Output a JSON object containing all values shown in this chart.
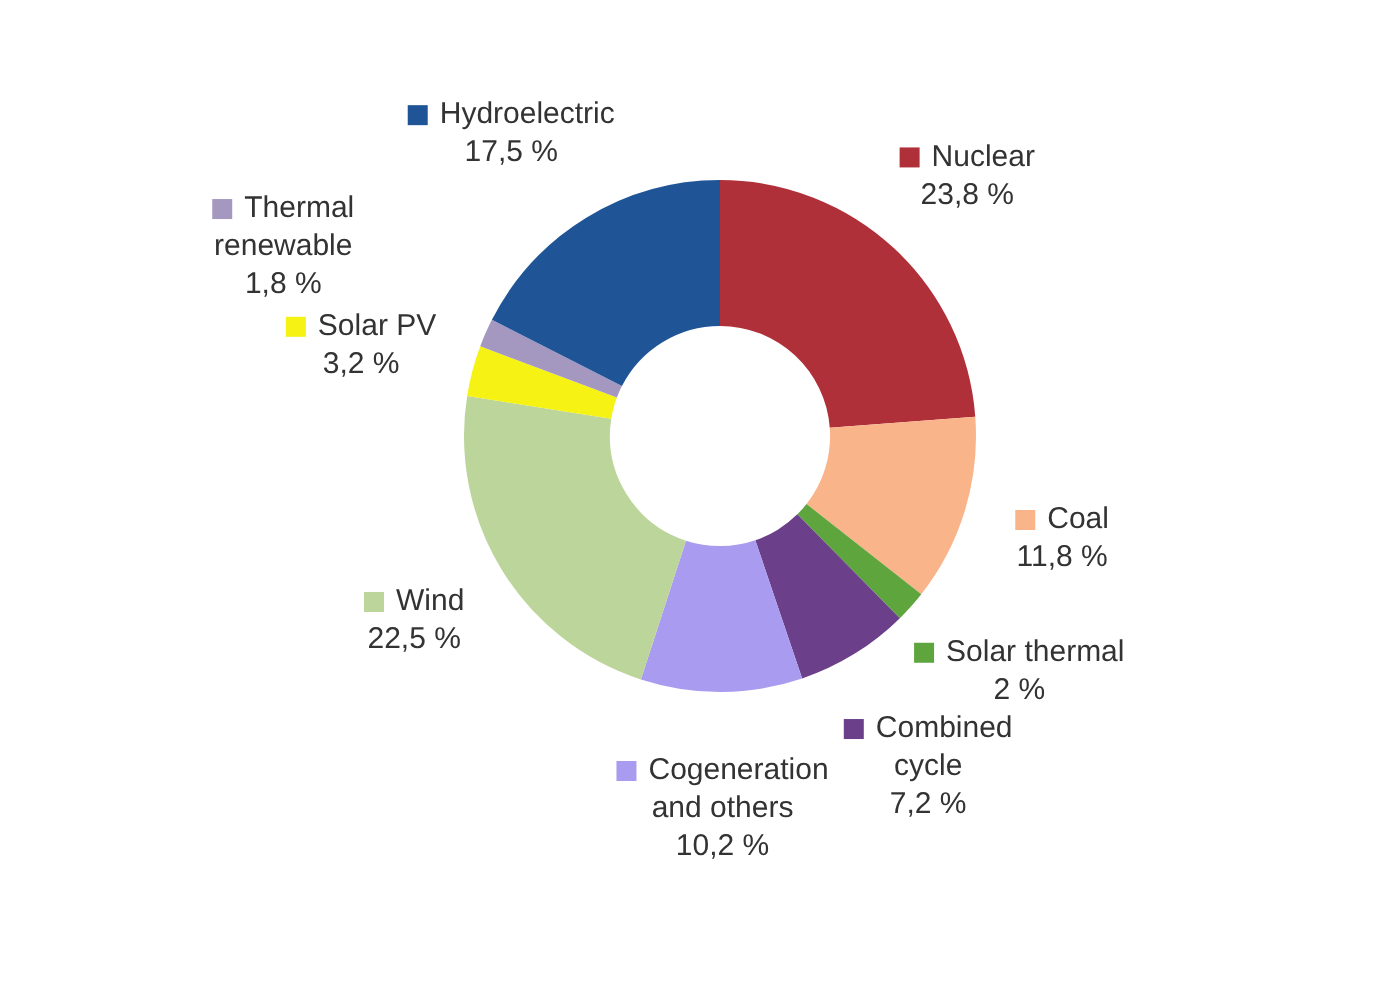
{
  "chart_data": {
    "type": "donut",
    "categories": [
      "Nuclear",
      "Coal",
      "Solar thermal",
      "Combined cycle",
      "Cogeneration and others",
      "Wind",
      "Solar PV",
      "Thermal renewable",
      "Hydroelectric"
    ],
    "values": [
      23.8,
      11.8,
      2,
      7.2,
      10.2,
      22.5,
      3.2,
      1.8,
      17.5
    ],
    "value_labels": [
      "23,8 %",
      "11,8 %",
      "2 %",
      "7,2 %",
      "10,2 %",
      "22,5 %",
      "3,2 %",
      "1,8 %",
      "17,5 %"
    ],
    "colors": [
      "#b0303a",
      "#f9b48a",
      "#5ea53e",
      "#6b3f8a",
      "#a99cf0",
      "#bcd59a",
      "#f5f214",
      "#a598c0",
      "#1f5597"
    ],
    "legend": "bottom left"
  }
}
